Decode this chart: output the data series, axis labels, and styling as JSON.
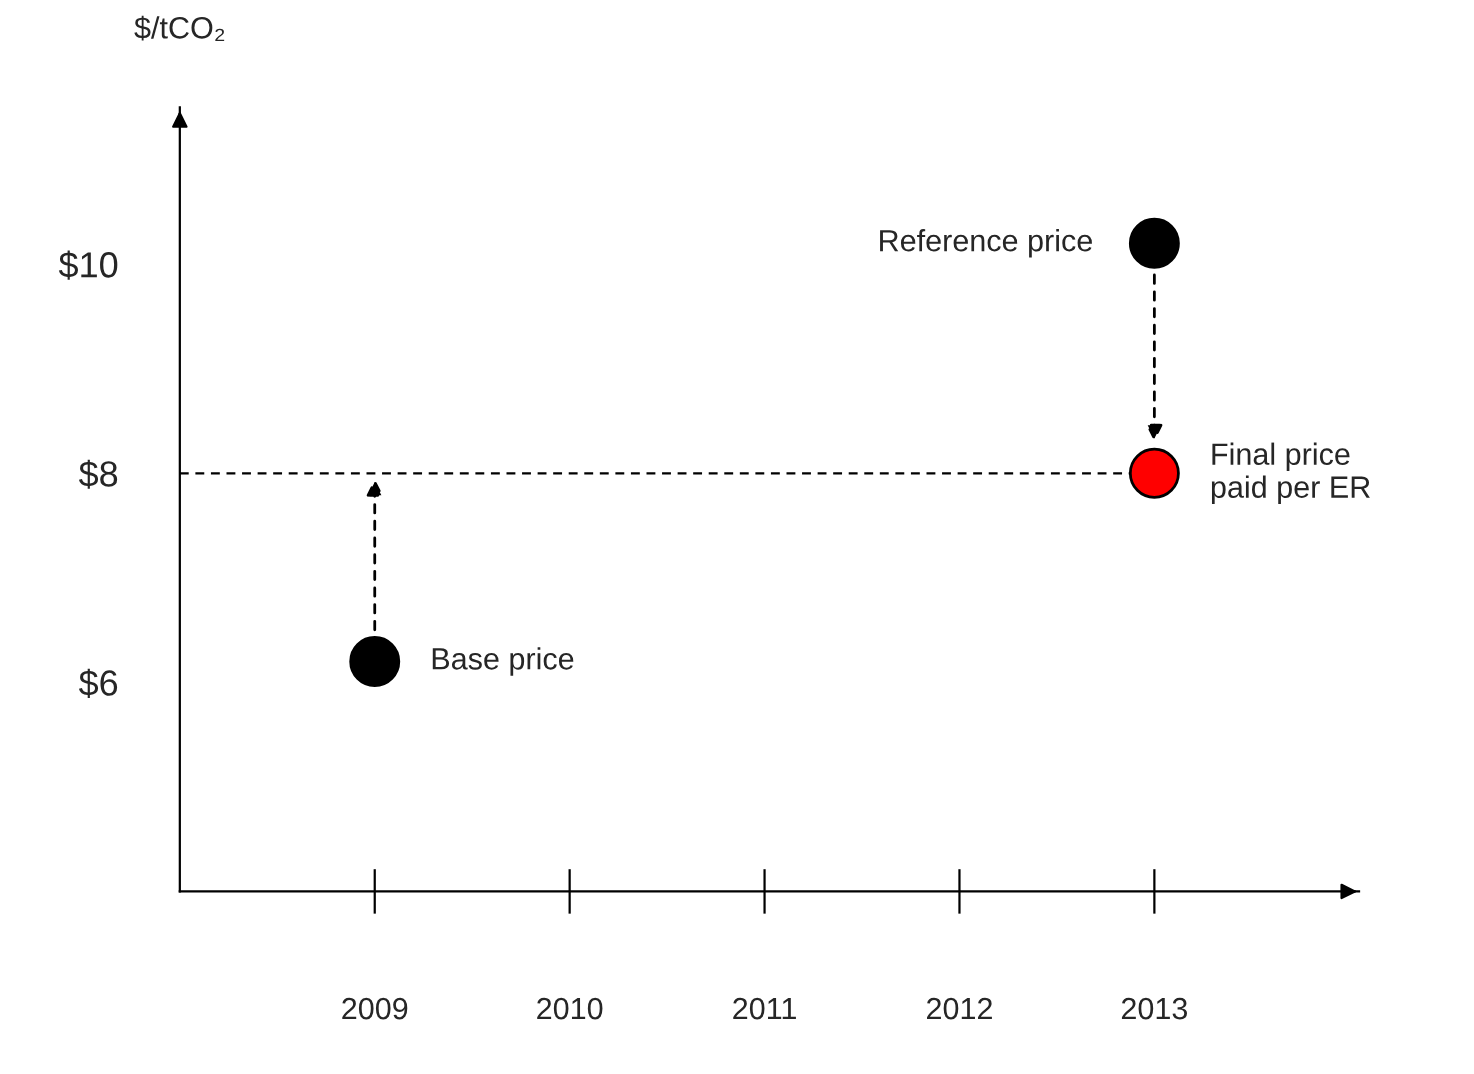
{
  "chart_data": {
    "type": "scatter",
    "ylabel": "$/tCO₂",
    "categories": [
      "2009",
      "2010",
      "2011",
      "2012",
      "2013"
    ],
    "series": [
      {
        "color": "#000000",
        "values": [
          6.2,
          null,
          null,
          null,
          10.2
        ]
      },
      {
        "color": "#ff0000",
        "values": [
          null,
          null,
          null,
          null,
          8
        ]
      }
    ],
    "ylim": [
      4,
      11.5
    ],
    "yticks": [
      {
        "value": 6,
        "label": "$6"
      },
      {
        "value": 8,
        "label": "$8"
      },
      {
        "value": 10,
        "label": "$10"
      }
    ],
    "ref_lines": [
      {
        "axis": "y",
        "value": 8,
        "color": "#000000",
        "line_style": "dashed"
      }
    ],
    "annotations": [
      "Base price",
      "Reference price",
      "Final price\npaid per ER"
    ],
    "marker": "circle",
    "grid": false,
    "legend": false
  }
}
